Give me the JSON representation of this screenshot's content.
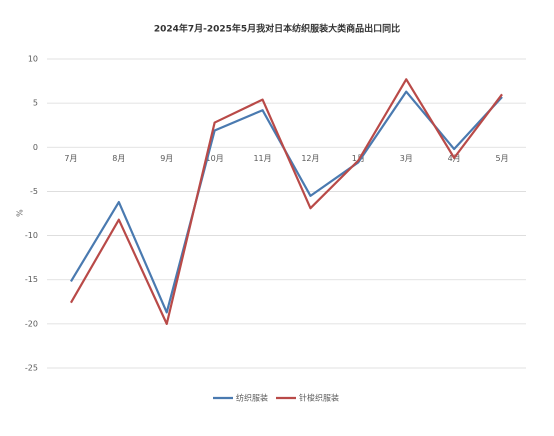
{
  "chart_data": {
    "type": "line",
    "title": "2024年7月-2025年5月我对日本纺织服装大类商品出口同比",
    "y_label": "%",
    "categories": [
      "7月",
      "8月",
      "9月",
      "10月",
      "11月",
      "12月",
      "1月",
      "3月",
      "4月",
      "5月"
    ],
    "series": [
      {
        "name": "纺织服装",
        "color": "#4a7ab0",
        "values": [
          -15.2,
          -6.2,
          -18.7,
          1.9,
          4.2,
          -5.5,
          -1.7,
          6.3,
          -0.2,
          5.7
        ]
      },
      {
        "name": "针梭织服装",
        "color": "#b94a48",
        "values": [
          -17.6,
          -8.2,
          -20.0,
          2.8,
          5.4,
          -6.9,
          -1.5,
          7.7,
          -1.2,
          6.0
        ]
      }
    ],
    "ylim": [
      -25,
      10
    ],
    "yticks": [
      -25,
      -20,
      -15,
      -10,
      -5,
      0,
      5,
      10
    ],
    "grid": true
  }
}
